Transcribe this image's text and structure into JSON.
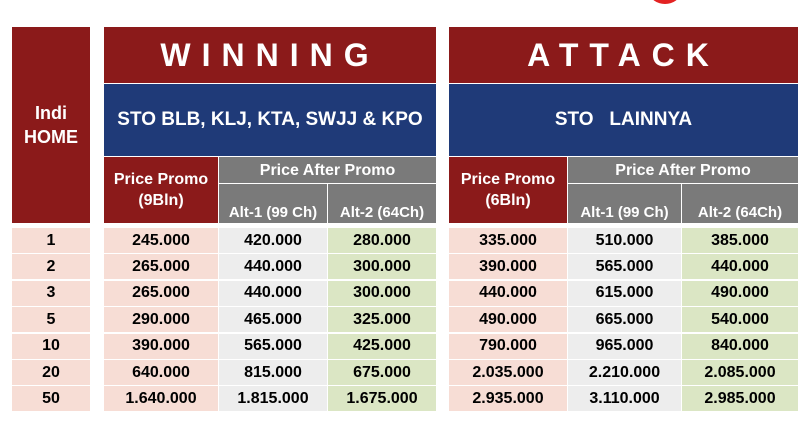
{
  "header": {
    "indi_home": "Indi\nHOME",
    "winning": {
      "title": "WINNING",
      "area": "STO BLB, KLJ, KTA, SWJJ & KPO",
      "price_promo": "Price Promo\n(9Bln)",
      "after_promo": "Price  After Promo",
      "alt1": "Alt-1 (99 Ch)",
      "alt2": "Alt-2 (64Ch)"
    },
    "attack": {
      "title": "ATTACK",
      "area": "STO   LAINNYA",
      "price_promo": "Price Promo\n(6Bln)",
      "after_promo": "Price  After Promo",
      "alt1": "Alt-1 (99 Ch)",
      "alt2": "Alt-2 (64Ch)"
    }
  },
  "rows": [
    {
      "speed": "1",
      "w_promo": "245.000",
      "w_alt1": "420.000",
      "w_alt2": "280.000",
      "a_promo": "335.000",
      "a_alt1": "510.000",
      "a_alt2": "385.000"
    },
    {
      "speed": "2",
      "w_promo": "265.000",
      "w_alt1": "440.000",
      "w_alt2": "300.000",
      "a_promo": "390.000",
      "a_alt1": "565.000",
      "a_alt2": "440.000"
    },
    {
      "speed": "3",
      "w_promo": "265.000",
      "w_alt1": "440.000",
      "w_alt2": "300.000",
      "a_promo": "440.000",
      "a_alt1": "615.000",
      "a_alt2": "490.000"
    },
    {
      "speed": "5",
      "w_promo": "290.000",
      "w_alt1": "465.000",
      "w_alt2": "325.000",
      "a_promo": "490.000",
      "a_alt1": "665.000",
      "a_alt2": "540.000"
    },
    {
      "speed": "10",
      "w_promo": "390.000",
      "w_alt1": "565.000",
      "w_alt2": "425.000",
      "a_promo": "790.000",
      "a_alt1": "965.000",
      "a_alt2": "840.000"
    },
    {
      "speed": "20",
      "w_promo": "640.000",
      "w_alt1": "815.000",
      "w_alt2": "675.000",
      "a_promo": "2.035.000",
      "a_alt1": "2.210.000",
      "a_alt2": "2.085.000"
    },
    {
      "speed": "50",
      "w_promo": "1.640.000",
      "w_alt1": "1.815.000",
      "w_alt2": "1.675.000",
      "a_promo": "2.935.000",
      "a_alt1": "3.110.000",
      "a_alt2": "2.985.000"
    }
  ]
}
